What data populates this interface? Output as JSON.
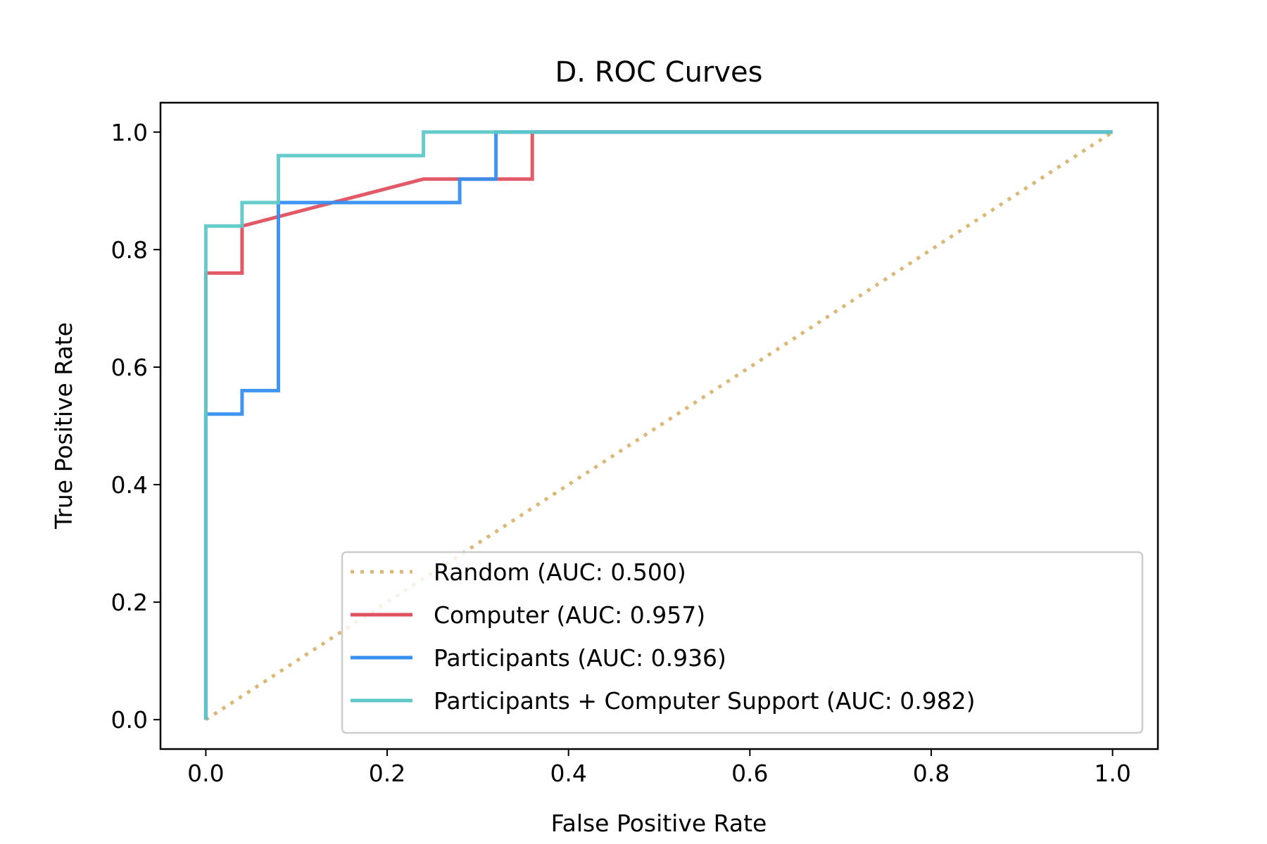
{
  "chart_data": {
    "type": "line",
    "title": "D. ROC Curves",
    "xlabel": "False Positive Rate",
    "ylabel": "True Positive Rate",
    "xlim": [
      -0.05,
      1.05
    ],
    "ylim": [
      -0.05,
      1.05
    ],
    "xticks": [
      0.0,
      0.2,
      0.4,
      0.6,
      0.8,
      1.0
    ],
    "xtick_labels": [
      "0.0",
      "0.2",
      "0.4",
      "0.6",
      "0.8",
      "1.0"
    ],
    "yticks": [
      0.0,
      0.2,
      0.4,
      0.6,
      0.8,
      1.0
    ],
    "ytick_labels": [
      "0.0",
      "0.2",
      "0.4",
      "0.6",
      "0.8",
      "1.0"
    ],
    "grid": false,
    "legend_position": "lower-right",
    "series": [
      {
        "name": "Random (AUC: 0.500)",
        "color": "#dcb878",
        "style": "dotted",
        "x": [
          0.0,
          1.0
        ],
        "y": [
          0.0,
          1.0
        ]
      },
      {
        "name": "Computer (AUC: 0.957)",
        "color": "#e0515f",
        "style": "solid",
        "x": [
          0.0,
          0.0,
          0.04,
          0.04,
          0.24,
          0.32,
          0.36,
          0.36,
          1.0
        ],
        "y": [
          0.0,
          0.76,
          0.76,
          0.84,
          0.92,
          0.92,
          0.92,
          1.0,
          1.0
        ]
      },
      {
        "name": "Participants (AUC: 0.936)",
        "color": "#3590f0",
        "style": "solid",
        "x": [
          0.0,
          0.0,
          0.04,
          0.04,
          0.08,
          0.08,
          0.28,
          0.28,
          0.32,
          0.32,
          1.0
        ],
        "y": [
          0.0,
          0.52,
          0.52,
          0.56,
          0.56,
          0.88,
          0.88,
          0.92,
          0.92,
          1.0,
          1.0
        ]
      },
      {
        "name": "Participants + Computer Support (AUC: 0.982)",
        "color": "#5ec8c8",
        "style": "solid",
        "x": [
          0.0,
          0.0,
          0.04,
          0.04,
          0.08,
          0.08,
          0.24,
          0.24,
          1.0
        ],
        "y": [
          0.0,
          0.84,
          0.84,
          0.88,
          0.88,
          0.96,
          0.96,
          1.0,
          1.0
        ]
      }
    ]
  }
}
